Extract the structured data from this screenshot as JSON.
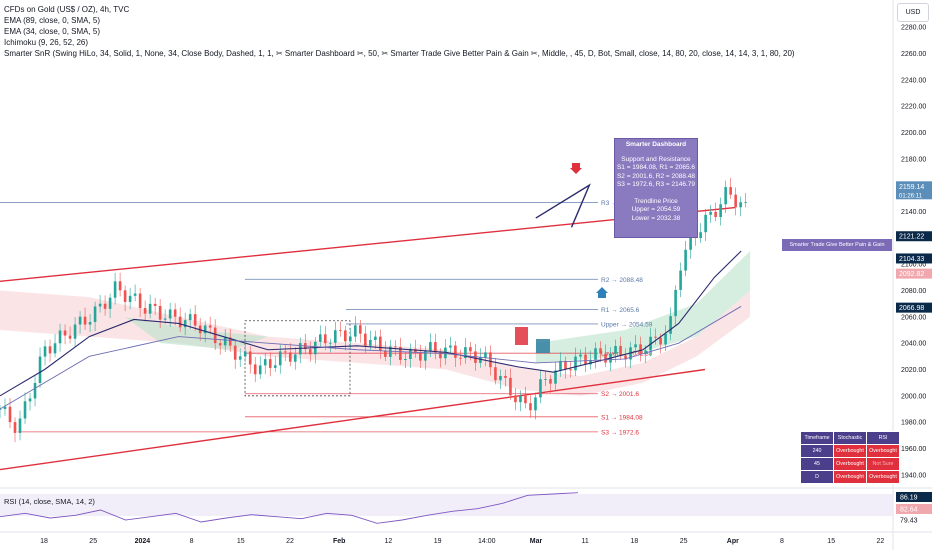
{
  "legend": [
    "CFDs on Gold (US$ / OZ), 4h, TVC",
    "EMA (89, close, 0, SMA, 5)",
    "EMA (34, close, 0, SMA, 5)",
    "Ichimoku (9, 26, 52, 26)",
    "Smarter SnR (Swing HiLo, 34, Solid, 1, None, 34, Close Body, Dashed, 1, 1, ✂ Smarter Dashboard ✂, 50, ✂ Smarter Trade Give Better Pain & Gain ✂, Middle, , 45, D, Bot, Small, close, 14, 80, 20, close, 14, 14, 3, 1, 80, 20)"
  ],
  "currency_button": "USD",
  "dashboard": {
    "title": "Smarter Dashboard",
    "sr_heading": "Support and Resistance",
    "sr_lines": [
      "S1 = 1984.08, R1 = 2065.6",
      "S2 = 2001.6, R2 = 2088.48",
      "S3 = 1972.6, R3 = 2146.79"
    ],
    "trend_heading": "Trendline Price",
    "trend_lines": [
      "Upper = 2054.59",
      "Lower = 2032.38"
    ]
  },
  "gain_label": "Smarter Trade Give Better Pain & Gain",
  "table": {
    "headers": [
      "Timeframe",
      "Stochastic",
      "RSI"
    ],
    "rows": [
      [
        "240",
        "Overbought",
        "Overbought"
      ],
      [
        "45",
        "Overbought",
        "Not Sure"
      ],
      [
        "D",
        "Overbought",
        "Overbought"
      ]
    ]
  },
  "rsi_legend": "RSI (14, close, SMA, 14, 2)",
  "chart_data": {
    "type": "candlestick",
    "price_ticks": [
      1940,
      1960,
      1980,
      2000,
      2020,
      2040,
      2060,
      2080,
      2100,
      2120,
      2140,
      2160,
      2180,
      2200,
      2220,
      2240,
      2260,
      2280
    ],
    "ylim": [
      1930,
      2290
    ],
    "time_ticks": [
      "18",
      "25",
      "2024",
      "8",
      "15",
      "22",
      "Feb",
      "12",
      "19",
      "14:00",
      "Mar",
      "11",
      "18",
      "25",
      "Apr",
      "8",
      "15",
      "22"
    ],
    "close_path": [
      [
        0,
        1990
      ],
      [
        0.02,
        1975
      ],
      [
        0.05,
        2035
      ],
      [
        0.08,
        2050
      ],
      [
        0.11,
        2065
      ],
      [
        0.13,
        2082
      ],
      [
        0.16,
        2068
      ],
      [
        0.19,
        2060
      ],
      [
        0.22,
        2055
      ],
      [
        0.25,
        2040
      ],
      [
        0.27,
        2030
      ],
      [
        0.29,
        2020
      ],
      [
        0.31,
        2028
      ],
      [
        0.34,
        2035
      ],
      [
        0.37,
        2045
      ],
      [
        0.4,
        2048
      ],
      [
        0.43,
        2035
      ],
      [
        0.46,
        2030
      ],
      [
        0.48,
        2035
      ],
      [
        0.51,
        2033
      ],
      [
        0.54,
        2030
      ],
      [
        0.57,
        2005
      ],
      [
        0.59,
        1990
      ],
      [
        0.61,
        2012
      ],
      [
        0.63,
        2022
      ],
      [
        0.66,
        2030
      ],
      [
        0.69,
        2032
      ],
      [
        0.71,
        2034
      ],
      [
        0.73,
        2040
      ],
      [
        0.75,
        2050
      ],
      [
        0.76,
        2098
      ],
      [
        0.78,
        2125
      ],
      [
        0.8,
        2140
      ],
      [
        0.815,
        2155
      ],
      [
        0.83,
        2145
      ]
    ],
    "price_labels": [
      {
        "value": 2159.14,
        "text": "2159.14",
        "sub": "01:26:11",
        "color": "#5b8fb9"
      },
      {
        "value": 2121.22,
        "text": "2121.22",
        "color": "#0b2a4a"
      },
      {
        "value": 2104.33,
        "text": "2104.33",
        "color": "#0b2a4a"
      },
      {
        "value": 2092.82,
        "text": "2092.82",
        "color": "#f0a8ae"
      },
      {
        "value": 2066.98,
        "text": "2066.98",
        "color": "#0b2a4a"
      }
    ],
    "levels": [
      {
        "label": "R3 → 2146.79",
        "value": 2146.79,
        "color": "#5b79a8"
      },
      {
        "label": "R2 → 2088.48",
        "value": 2088.48,
        "color": "#5b79a8"
      },
      {
        "label": "R1 → 2065.6",
        "value": 2065.6,
        "color": "#5b79a8"
      },
      {
        "label": "Upper → 2054.59",
        "value": 2054.59,
        "color": "#5b79a8"
      },
      {
        "label": "Lower → 2032.38",
        "value": 2032.38,
        "color": "#e0303d"
      },
      {
        "label": "S2 → 2001.6",
        "value": 2001.6,
        "color": "#e0303d"
      },
      {
        "label": "S1 → 1984.08",
        "value": 1984.08,
        "color": "#e0303d"
      },
      {
        "label": "S3 → 1972.6",
        "value": 1972.6,
        "color": "#e0303d"
      }
    ],
    "rsi": {
      "ticks": [
        "86.19",
        "82.64",
        "79.43"
      ],
      "values": [
        50,
        55,
        48,
        52,
        60,
        45,
        50,
        55,
        42,
        48,
        53,
        50,
        47,
        55,
        52,
        40,
        45,
        52,
        58,
        62,
        70,
        82,
        84,
        86
      ]
    }
  }
}
